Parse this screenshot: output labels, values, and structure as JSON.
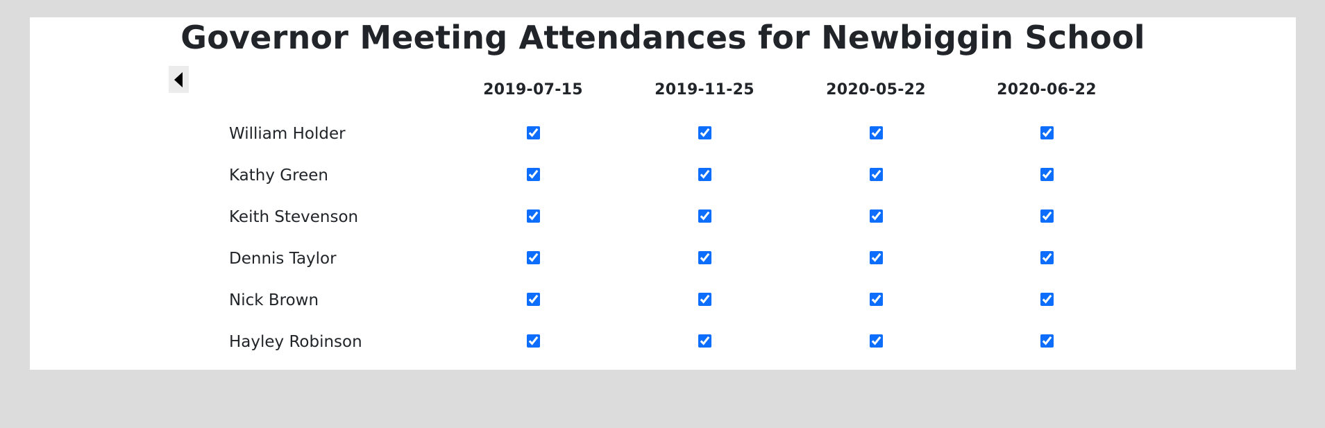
{
  "page": {
    "title": "Governor Meeting Attendances for Newbiggin School"
  },
  "nav": {
    "back_icon": "caret-left-icon"
  },
  "table": {
    "dates": [
      "2019-07-15",
      "2019-11-25",
      "2020-05-22",
      "2020-06-22"
    ],
    "rows": [
      {
        "name": "William Holder",
        "attended": [
          true,
          true,
          true,
          true
        ]
      },
      {
        "name": "Kathy Green",
        "attended": [
          true,
          true,
          true,
          true
        ]
      },
      {
        "name": "Keith Stevenson",
        "attended": [
          true,
          true,
          true,
          true
        ]
      },
      {
        "name": "Dennis Taylor",
        "attended": [
          true,
          true,
          true,
          true
        ]
      },
      {
        "name": "Nick Brown",
        "attended": [
          true,
          true,
          true,
          true
        ]
      },
      {
        "name": "Hayley Robinson",
        "attended": [
          true,
          true,
          true,
          true
        ]
      }
    ]
  },
  "colors": {
    "background": "#dcdcdc",
    "panel": "#ffffff",
    "text": "#212529",
    "checkbox_accent": "#0d6efd",
    "back_button_bg": "#ececec"
  }
}
